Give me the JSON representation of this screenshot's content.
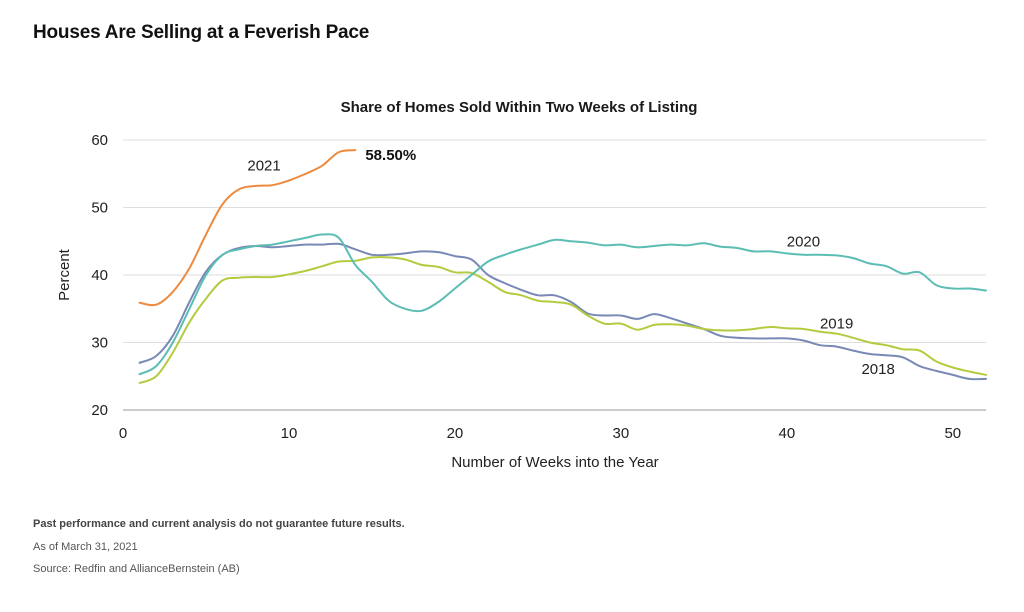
{
  "page": {
    "title": "Houses Are Selling at a Feverish Pace"
  },
  "chart_data": {
    "type": "line",
    "title": "Share of Homes Sold Within Two Weeks of Listing",
    "xlabel": "Number of Weeks into the Year",
    "ylabel": "Percent",
    "xlim": [
      0,
      52
    ],
    "ylim": [
      20,
      60
    ],
    "xticks": [
      0,
      10,
      20,
      30,
      40,
      50
    ],
    "yticks": [
      20,
      30,
      40,
      50,
      60
    ],
    "grid": "horizontal",
    "series": [
      {
        "name": "2018",
        "color": "#7889b6",
        "x": [
          1,
          2,
          3,
          4,
          5,
          6,
          7,
          8,
          9,
          10,
          11,
          12,
          13,
          14,
          15,
          16,
          17,
          18,
          19,
          20,
          21,
          22,
          23,
          24,
          25,
          26,
          27,
          28,
          29,
          30,
          31,
          32,
          33,
          34,
          35,
          36,
          37,
          38,
          39,
          40,
          41,
          42,
          43,
          44,
          45,
          46,
          47,
          48,
          49,
          50,
          51,
          52
        ],
        "y": [
          27.0,
          28.0,
          31.0,
          36.0,
          40.5,
          43.0,
          44.0,
          44.3,
          44.1,
          44.3,
          44.5,
          44.5,
          44.6,
          43.8,
          43.0,
          43.0,
          43.2,
          43.5,
          43.4,
          42.8,
          42.3,
          40.0,
          38.8,
          37.8,
          37.0,
          37.0,
          36.0,
          34.3,
          34.0,
          34.0,
          33.5,
          34.2,
          33.6,
          32.8,
          32.0,
          31.0,
          30.7,
          30.6,
          30.6,
          30.6,
          30.3,
          29.6,
          29.4,
          28.8,
          28.3,
          28.1,
          27.8,
          26.5,
          25.8,
          25.2,
          24.6,
          24.6
        ],
        "label_x": 45.5,
        "label_y": 25.3
      },
      {
        "name": "2019",
        "color": "#b3cc3f",
        "x": [
          1,
          2,
          3,
          4,
          5,
          6,
          7,
          8,
          9,
          10,
          11,
          12,
          13,
          14,
          15,
          16,
          17,
          18,
          19,
          20,
          21,
          22,
          23,
          24,
          25,
          26,
          27,
          28,
          29,
          30,
          31,
          32,
          33,
          34,
          35,
          36,
          37,
          38,
          39,
          40,
          41,
          42,
          43,
          44,
          45,
          46,
          47,
          48,
          49,
          50,
          51,
          52
        ],
        "y": [
          24.0,
          25.0,
          28.5,
          33.0,
          36.5,
          39.2,
          39.6,
          39.7,
          39.7,
          40.1,
          40.6,
          41.3,
          42.0,
          42.1,
          42.6,
          42.6,
          42.3,
          41.5,
          41.2,
          40.4,
          40.3,
          39.0,
          37.5,
          37.0,
          36.2,
          36.0,
          35.6,
          34.0,
          32.8,
          32.8,
          31.9,
          32.6,
          32.7,
          32.5,
          32.0,
          31.8,
          31.8,
          32.0,
          32.3,
          32.1,
          32.0,
          31.6,
          31.3,
          30.7,
          30.0,
          29.6,
          29.0,
          28.8,
          27.2,
          26.3,
          25.7,
          25.2
        ],
        "label_x": 43.0,
        "label_y": 32.1
      },
      {
        "name": "2020",
        "color": "#5cbdb4",
        "x": [
          1,
          2,
          3,
          4,
          5,
          6,
          7,
          8,
          9,
          10,
          11,
          12,
          13,
          14,
          15,
          16,
          17,
          18,
          19,
          20,
          21,
          22,
          23,
          24,
          25,
          26,
          27,
          28,
          29,
          30,
          31,
          32,
          33,
          34,
          35,
          36,
          37,
          38,
          39,
          40,
          41,
          42,
          43,
          44,
          45,
          46,
          47,
          48,
          49,
          50,
          51,
          52
        ],
        "y": [
          25.3,
          26.5,
          30.0,
          35.0,
          40.0,
          43.0,
          43.8,
          44.3,
          44.5,
          45.0,
          45.5,
          46.0,
          45.5,
          41.5,
          39.0,
          36.2,
          35.0,
          34.7,
          36.0,
          38.0,
          40.0,
          42.0,
          43.0,
          43.8,
          44.5,
          45.2,
          45.0,
          44.8,
          44.4,
          44.5,
          44.1,
          44.3,
          44.5,
          44.4,
          44.7,
          44.2,
          44.0,
          43.5,
          43.5,
          43.2,
          43.0,
          43.0,
          42.9,
          42.5,
          41.7,
          41.3,
          40.2,
          40.4,
          38.5,
          38.0,
          38.0,
          37.7
        ],
        "label_x": 41.0,
        "label_y": 44.2
      },
      {
        "name": "2021",
        "color": "#ee8a3d",
        "x": [
          1,
          2,
          3,
          4,
          5,
          6,
          7,
          8,
          9,
          10,
          11,
          12,
          13,
          14
        ],
        "y": [
          35.9,
          35.6,
          37.5,
          41.0,
          46.0,
          50.5,
          52.7,
          53.2,
          53.3,
          54.0,
          55.0,
          56.2,
          58.2,
          58.5
        ],
        "label_x": 8.5,
        "label_y": 55.5,
        "end_label": "58.50%"
      }
    ]
  },
  "footer": {
    "disclaimer": "Past performance and current analysis do not guarantee future results.",
    "as_of": "As of March 31, 2021",
    "source": "Source: Redfin and AllianceBernstein (AB)"
  }
}
